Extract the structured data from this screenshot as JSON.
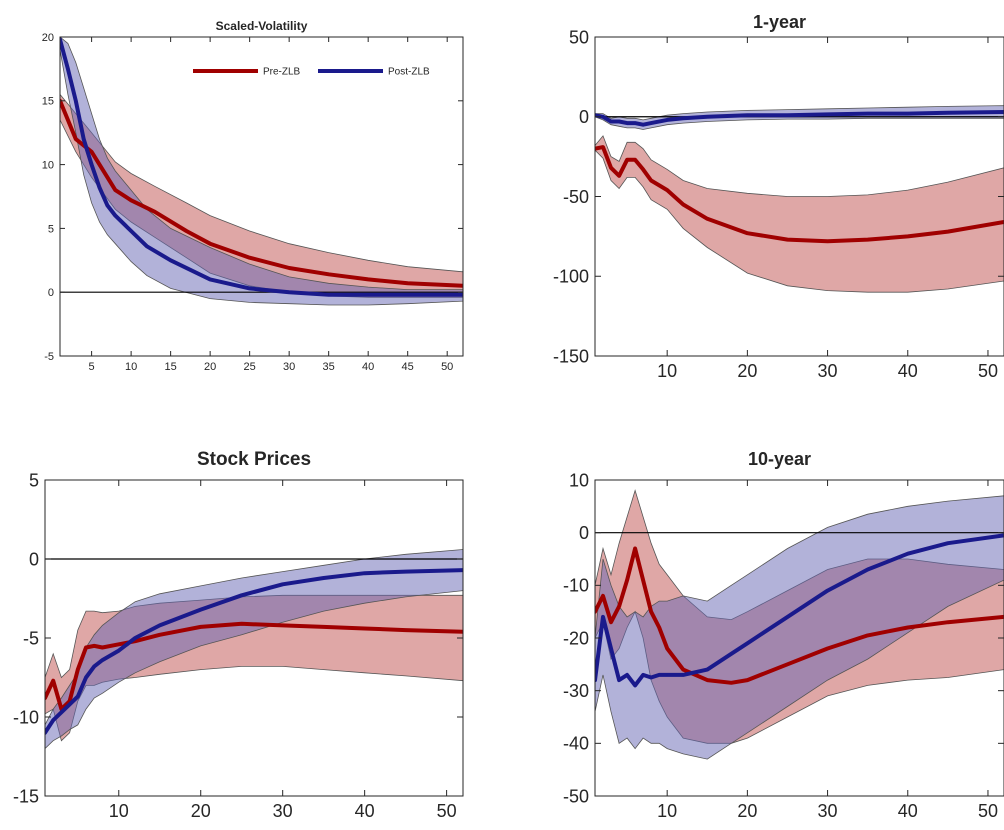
{
  "chart_data": [
    {
      "type": "line",
      "title": "Scaled-Volatility",
      "xlim": [
        1,
        52
      ],
      "ylim": [
        -5,
        20
      ],
      "xticks": [
        5,
        10,
        15,
        20,
        25,
        30,
        35,
        40,
        45,
        50
      ],
      "yticks": [
        -5,
        0,
        5,
        10,
        15,
        20
      ],
      "grid": false,
      "legend": {
        "placement": "top-right",
        "entries": [
          "Pre-ZLB",
          "Post-ZLB"
        ]
      },
      "series": [
        {
          "name": "Pre-ZLB",
          "color": "#a00000",
          "band_color": "#c0504d",
          "x": [
            1,
            3,
            5,
            8,
            10,
            13,
            17,
            20,
            25,
            30,
            35,
            40,
            45,
            52
          ],
          "values": [
            15,
            12,
            11,
            8,
            7.2,
            6.3,
            4.8,
            3.8,
            2.7,
            1.9,
            1.4,
            1.0,
            0.7,
            0.5
          ],
          "lower": [
            13.5,
            11,
            9,
            6.5,
            5.5,
            4.3,
            2.7,
            1.5,
            0.5,
            0,
            -0.3,
            -0.4,
            -0.4,
            -0.4
          ],
          "upper": [
            15.5,
            14,
            12.5,
            10.2,
            9.3,
            8.3,
            7.0,
            6.0,
            4.8,
            3.8,
            3.1,
            2.5,
            2.0,
            1.6
          ]
        },
        {
          "name": "Post-ZLB",
          "color": "#1a1a8c",
          "band_color": "#6666b3",
          "x": [
            1,
            2,
            3,
            4,
            5,
            6,
            7,
            8,
            10,
            12,
            15,
            20,
            25,
            30,
            35,
            40,
            45,
            52
          ],
          "values": [
            19.8,
            17.5,
            15,
            12,
            10,
            8.2,
            6.8,
            6.0,
            4.8,
            3.6,
            2.5,
            1.0,
            0.3,
            0,
            -0.2,
            -0.2,
            -0.2,
            -0.2
          ],
          "lower": [
            19,
            15.5,
            12.5,
            9.2,
            7,
            5.5,
            4.5,
            3.8,
            2.4,
            1.3,
            0.3,
            -0.5,
            -0.8,
            -0.9,
            -1.0,
            -1.0,
            -0.9,
            -0.7
          ],
          "upper": [
            20,
            19.5,
            18,
            16,
            14,
            12,
            10.5,
            9.5,
            8,
            6.5,
            5,
            3.5,
            2.2,
            1.2,
            0.7,
            0.4,
            0.2,
            0.2
          ]
        }
      ]
    },
    {
      "type": "line",
      "title": "1-year",
      "xlim": [
        1,
        52
      ],
      "ylim": [
        -150,
        50
      ],
      "xticks": [
        10,
        20,
        30,
        40,
        50
      ],
      "yticks": [
        -150,
        -100,
        -50,
        0,
        50
      ],
      "grid": false,
      "series": [
        {
          "name": "Pre-ZLB",
          "color": "#a00000",
          "band_color": "#c0504d",
          "x": [
            1,
            2,
            3,
            4,
            5,
            6,
            7,
            8,
            10,
            12,
            15,
            20,
            25,
            30,
            35,
            40,
            45,
            52
          ],
          "values": [
            -20,
            -19,
            -32,
            -37,
            -27,
            -27,
            -33,
            -40,
            -46,
            -55,
            -64,
            -73,
            -77,
            -78,
            -77,
            -75,
            -72,
            -66
          ],
          "lower": [
            -21,
            -26,
            -40,
            -45,
            -38,
            -38,
            -44,
            -52,
            -58,
            -70,
            -82,
            -98,
            -106,
            -109,
            -110,
            -110,
            -108,
            -103
          ],
          "upper": [
            -18,
            -12,
            -25,
            -28,
            -16,
            -16,
            -20,
            -27,
            -33,
            -40,
            -45,
            -48,
            -50,
            -50,
            -49,
            -46,
            -41,
            -32
          ]
        },
        {
          "name": "Post-ZLB",
          "color": "#1a1a8c",
          "band_color": "#6666b3",
          "x": [
            1,
            2,
            3,
            4,
            5,
            6,
            7,
            8,
            10,
            12,
            15,
            20,
            25,
            30,
            35,
            40,
            45,
            52
          ],
          "values": [
            1,
            0,
            -3,
            -3,
            -4,
            -4,
            -5,
            -4,
            -2,
            -1,
            0,
            1,
            1,
            1.5,
            2,
            2,
            2.5,
            3
          ],
          "lower": [
            0,
            -2,
            -5,
            -6,
            -7,
            -7,
            -8,
            -7,
            -5,
            -4,
            -3,
            -2,
            -1.5,
            -1.5,
            -1,
            -1,
            -1,
            -1
          ],
          "upper": [
            2,
            2,
            -1,
            0,
            -1,
            -1,
            -2,
            -1,
            1,
            2,
            3,
            4,
            4.5,
            5,
            5.5,
            6,
            6.5,
            7
          ]
        }
      ]
    },
    {
      "type": "line",
      "title": "Stock Prices",
      "xlim": [
        1,
        52
      ],
      "ylim": [
        -15,
        5
      ],
      "xticks": [
        10,
        20,
        30,
        40,
        50
      ],
      "yticks": [
        -15,
        -10,
        -5,
        0,
        5
      ],
      "grid": false,
      "series": [
        {
          "name": "Pre-ZLB",
          "color": "#a00000",
          "band_color": "#c0504d",
          "x": [
            1,
            2,
            3,
            4,
            5,
            6,
            7,
            8,
            10,
            12,
            15,
            20,
            25,
            30,
            35,
            40,
            45,
            52
          ],
          "values": [
            -8.8,
            -7.7,
            -9.5,
            -9.0,
            -7.0,
            -5.6,
            -5.5,
            -5.6,
            -5.4,
            -5.2,
            -4.8,
            -4.3,
            -4.1,
            -4.2,
            -4.3,
            -4.4,
            -4.5,
            -4.6
          ],
          "lower": [
            -9.8,
            -9.5,
            -11.5,
            -11.0,
            -9.0,
            -8.0,
            -8.0,
            -7.8,
            -7.6,
            -7.5,
            -7.3,
            -7.0,
            -6.8,
            -6.8,
            -7.0,
            -7.2,
            -7.4,
            -7.7
          ],
          "upper": [
            -7.5,
            -6.0,
            -7.5,
            -7.0,
            -4.5,
            -3.3,
            -3.3,
            -3.4,
            -3.3,
            -3.0,
            -2.8,
            -2.6,
            -2.4,
            -2.3,
            -2.3,
            -2.3,
            -2.3,
            -2.3
          ]
        },
        {
          "name": "Post-ZLB",
          "color": "#1a1a8c",
          "band_color": "#6666b3",
          "x": [
            1,
            2,
            3,
            4,
            5,
            6,
            7,
            8,
            10,
            12,
            15,
            20,
            25,
            30,
            35,
            40,
            45,
            52
          ],
          "values": [
            -11,
            -10.2,
            -9.7,
            -9.2,
            -8.7,
            -7.5,
            -6.8,
            -6.4,
            -5.8,
            -5.0,
            -4.2,
            -3.2,
            -2.3,
            -1.6,
            -1.2,
            -0.9,
            -0.8,
            -0.7
          ],
          "lower": [
            -12,
            -11.5,
            -11.2,
            -10.8,
            -10.5,
            -9.5,
            -8.8,
            -8.5,
            -7.8,
            -7.2,
            -6.5,
            -5.5,
            -4.8,
            -4.0,
            -3.3,
            -2.8,
            -2.4,
            -2.0
          ],
          "upper": [
            -10.5,
            -9.5,
            -8.8,
            -8.0,
            -7.2,
            -5.6,
            -4.8,
            -4.2,
            -3.4,
            -2.7,
            -2.2,
            -1.7,
            -1.2,
            -0.8,
            -0.4,
            0.0,
            0.3,
            0.6
          ]
        }
      ]
    },
    {
      "type": "line",
      "title": "10-year",
      "xlim": [
        1,
        52
      ],
      "ylim": [
        -50,
        10
      ],
      "xticks": [
        10,
        20,
        30,
        40,
        50
      ],
      "yticks": [
        -50,
        -40,
        -30,
        -20,
        -10,
        0,
        10
      ],
      "grid": false,
      "series": [
        {
          "name": "Pre-ZLB",
          "color": "#a00000",
          "band_color": "#c0504d",
          "x": [
            1,
            2,
            3,
            4,
            5,
            6,
            7,
            8,
            9,
            10,
            12,
            15,
            18,
            20,
            25,
            30,
            35,
            40,
            45,
            52
          ],
          "values": [
            -15,
            -12,
            -17,
            -14,
            -9,
            -3,
            -9,
            -15,
            -18,
            -22,
            -26,
            -28,
            -28.5,
            -28,
            -25,
            -22,
            -19.5,
            -18,
            -17,
            -16
          ],
          "lower": [
            -20,
            -17,
            -24,
            -22,
            -18,
            -15,
            -20,
            -28,
            -32,
            -35,
            -39,
            -40,
            -40,
            -39,
            -35,
            -31,
            -29,
            -28,
            -27.5,
            -26
          ],
          "upper": [
            -10,
            -3,
            -8,
            -2,
            3,
            8,
            3,
            -2,
            -6,
            -8,
            -12,
            -16,
            -16.5,
            -15,
            -11,
            -7,
            -5,
            -5,
            -6,
            -7
          ]
        },
        {
          "name": "Post-ZLB",
          "color": "#1a1a8c",
          "band_color": "#6666b3",
          "x": [
            1,
            2,
            3,
            4,
            5,
            6,
            7,
            8,
            9,
            10,
            12,
            15,
            18,
            20,
            25,
            30,
            35,
            40,
            45,
            52
          ],
          "values": [
            -28,
            -16,
            -22,
            -28,
            -27,
            -29,
            -27,
            -27.5,
            -27,
            -27,
            -27,
            -26,
            -23,
            -21,
            -16,
            -11,
            -7,
            -4,
            -2,
            -0.5
          ],
          "lower": [
            -34,
            -27,
            -34,
            -40,
            -39,
            -41,
            -39,
            -40,
            -40,
            -41,
            -42,
            -43,
            -40,
            -38,
            -33,
            -28,
            -24,
            -19,
            -14,
            -9
          ],
          "upper": [
            -20,
            -5,
            -10,
            -14,
            -16,
            -15,
            -16,
            -14,
            -13,
            -13,
            -12,
            -13,
            -10,
            -8,
            -3,
            1,
            3.5,
            5,
            6,
            7
          ]
        }
      ]
    }
  ]
}
